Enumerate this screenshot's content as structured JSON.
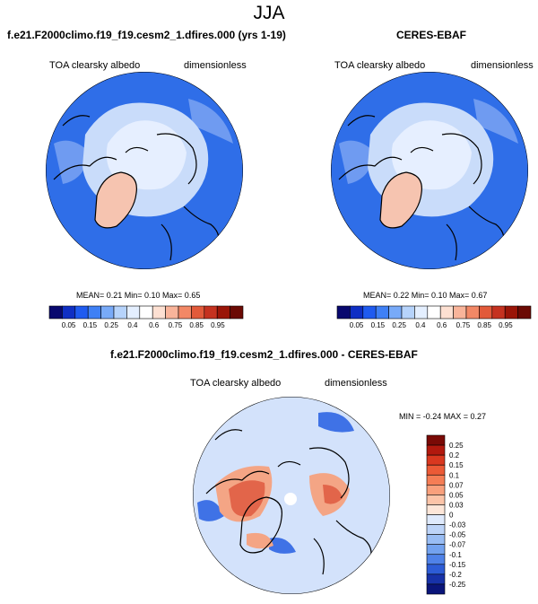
{
  "season": "JJA",
  "panels": [
    {
      "title": "f.e21.F2000climo.f19_f19.cesm2_1.dfires.000 (yrs 1-19)",
      "variable": "TOA clearsky albedo",
      "units": "dimensionless",
      "stats": "MEAN=  0.21  Min=   0.10  Max=   0.65"
    },
    {
      "title": "CERES-EBAF",
      "variable": "TOA clearsky albedo",
      "units": "dimensionless",
      "stats": "MEAN=  0.22  Min=   0.10  Max=   0.67"
    },
    {
      "title": "f.e21.F2000climo.f19_f19.cesm2_1.dfires.000 - CERES-EBAF",
      "variable": "TOA clearsky albedo",
      "units": "dimensionless",
      "stats": "MIN = -0.24 MAX =   0.27"
    }
  ],
  "abs_colorbar": {
    "labels": [
      "0.05",
      "0.15",
      "0.25",
      "0.4",
      "0.6",
      "0.75",
      "0.85",
      "0.95"
    ],
    "colors": [
      "#08086e",
      "#0f2fc4",
      "#1f5bf0",
      "#3f80f5",
      "#78aaf8",
      "#b6d3fb",
      "#e4efff",
      "#ffffff",
      "#fde0d2",
      "#f9b49a",
      "#f28866",
      "#e25a3a",
      "#c53220",
      "#9a1508",
      "#6b0a04"
    ]
  },
  "diff_colorbar": {
    "labels": [
      "0.25",
      "0.2",
      "0.15",
      "0.1",
      "0.07",
      "0.05",
      "0.03",
      "0",
      "-0.03",
      "-0.05",
      "-0.07",
      "-0.1",
      "-0.15",
      "-0.2",
      "-0.25"
    ],
    "colors": [
      "#7a0a06",
      "#b2190e",
      "#d9381f",
      "#ec5a36",
      "#f57d55",
      "#f9a07c",
      "#fcc4a8",
      "#fde6d8",
      "#dfeafc",
      "#bdd4f8",
      "#99bdf4",
      "#73a2ef",
      "#4f82e8",
      "#2d5cd6",
      "#1732a8",
      "#0a157a"
    ]
  },
  "map_colors": {
    "ocean": "#2f6ee8",
    "ocean_dark": "#2457d6",
    "ice": "#c9dcfa",
    "ice_inner": "#e6efff",
    "greenland": "#f6c4b0",
    "land_light": "#6f9bf1",
    "diff_base": "#d3e2fb",
    "diff_pos": "#e2654a",
    "diff_pos_light": "#f4a585",
    "diff_neg": "#3f72e6"
  }
}
